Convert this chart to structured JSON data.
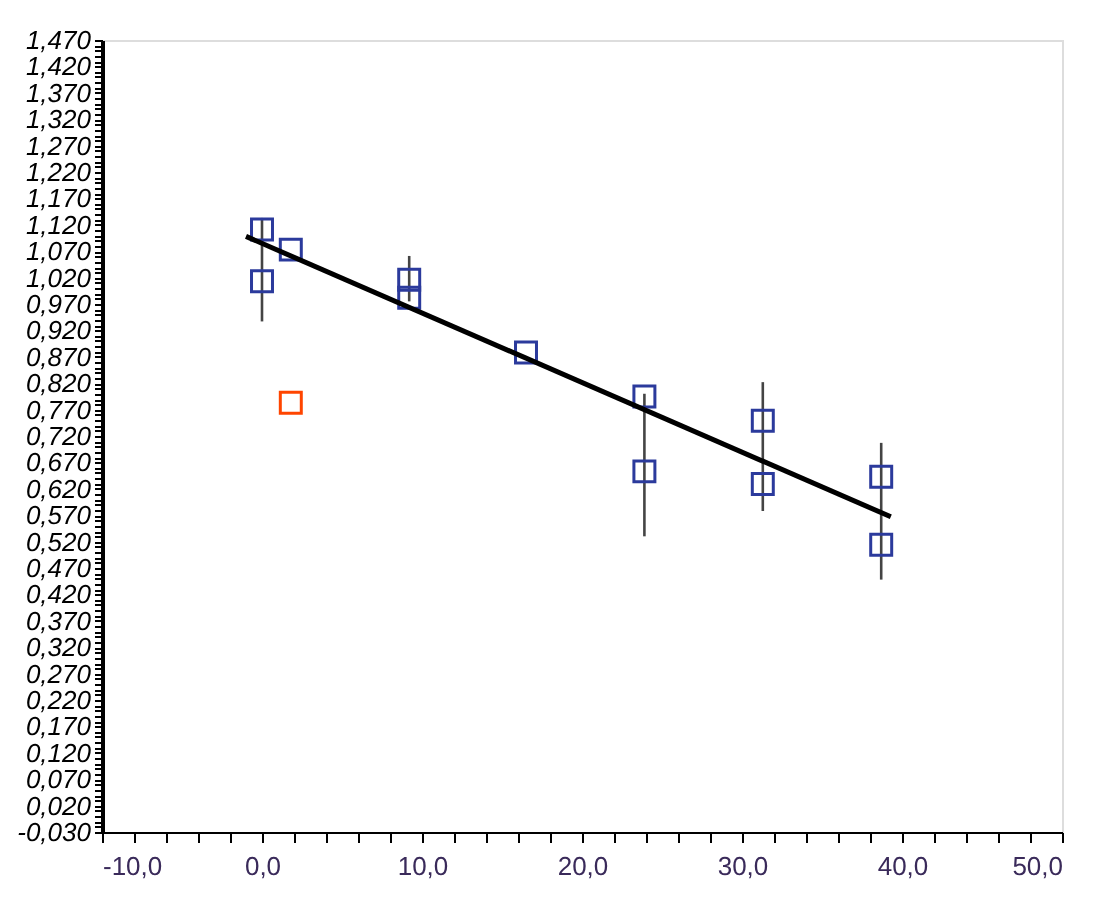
{
  "chart_data": {
    "type": "scatter",
    "marker": "square",
    "grid": false,
    "xlim": [
      -10,
      50
    ],
    "ylim": [
      -0.03,
      1.47
    ],
    "xticks": [
      {
        "value": -10,
        "label": "-10,0"
      },
      {
        "value": -8,
        "label": null
      },
      {
        "value": -6,
        "label": null
      },
      {
        "value": -4,
        "label": null
      },
      {
        "value": -2,
        "label": null
      },
      {
        "value": 0,
        "label": "0,0"
      },
      {
        "value": 2,
        "label": null
      },
      {
        "value": 4,
        "label": null
      },
      {
        "value": 6,
        "label": null
      },
      {
        "value": 8,
        "label": null
      },
      {
        "value": 10,
        "label": "10,0"
      },
      {
        "value": 12,
        "label": null
      },
      {
        "value": 14,
        "label": null
      },
      {
        "value": 16,
        "label": null
      },
      {
        "value": 18,
        "label": null
      },
      {
        "value": 20,
        "label": "20,0"
      },
      {
        "value": 22,
        "label": null
      },
      {
        "value": 24,
        "label": null
      },
      {
        "value": 26,
        "label": null
      },
      {
        "value": 28,
        "label": null
      },
      {
        "value": 30,
        "label": "30,0"
      },
      {
        "value": 32,
        "label": null
      },
      {
        "value": 34,
        "label": null
      },
      {
        "value": 36,
        "label": null
      },
      {
        "value": 38,
        "label": null
      },
      {
        "value": 40,
        "label": "40,0"
      },
      {
        "value": 42,
        "label": null
      },
      {
        "value": 44,
        "label": null
      },
      {
        "value": 46,
        "label": null
      },
      {
        "value": 48,
        "label": null
      },
      {
        "value": 50,
        "label": "50,0"
      }
    ],
    "yticks": [
      {
        "value": -0.03,
        "label": "-0,030"
      },
      {
        "value": -0.02,
        "label": null
      },
      {
        "value": -0.01,
        "label": null
      },
      {
        "value": 0,
        "label": null
      },
      {
        "value": 0.01,
        "label": null
      },
      {
        "value": 0.02,
        "label": "0,020"
      },
      {
        "value": 0.03,
        "label": null
      },
      {
        "value": 0.04,
        "label": null
      },
      {
        "value": 0.05,
        "label": null
      },
      {
        "value": 0.06,
        "label": null
      },
      {
        "value": 0.07,
        "label": "0,070"
      },
      {
        "value": 0.08,
        "label": null
      },
      {
        "value": 0.09,
        "label": null
      },
      {
        "value": 0.1,
        "label": null
      },
      {
        "value": 0.11,
        "label": null
      },
      {
        "value": 0.12,
        "label": "0,120"
      },
      {
        "value": 0.13,
        "label": null
      },
      {
        "value": 0.14,
        "label": null
      },
      {
        "value": 0.15,
        "label": null
      },
      {
        "value": 0.16,
        "label": null
      },
      {
        "value": 0.17,
        "label": "0,170"
      },
      {
        "value": 0.18,
        "label": null
      },
      {
        "value": 0.19,
        "label": null
      },
      {
        "value": 0.2,
        "label": null
      },
      {
        "value": 0.21,
        "label": null
      },
      {
        "value": 0.22,
        "label": "0,220"
      },
      {
        "value": 0.23,
        "label": null
      },
      {
        "value": 0.24,
        "label": null
      },
      {
        "value": 0.25,
        "label": null
      },
      {
        "value": 0.26,
        "label": null
      },
      {
        "value": 0.27,
        "label": "0,270"
      },
      {
        "value": 0.28,
        "label": null
      },
      {
        "value": 0.29,
        "label": null
      },
      {
        "value": 0.3,
        "label": null
      },
      {
        "value": 0.31,
        "label": null
      },
      {
        "value": 0.32,
        "label": "0,320"
      },
      {
        "value": 0.33,
        "label": null
      },
      {
        "value": 0.34,
        "label": null
      },
      {
        "value": 0.35,
        "label": null
      },
      {
        "value": 0.36,
        "label": null
      },
      {
        "value": 0.37,
        "label": "0,370"
      },
      {
        "value": 0.38,
        "label": null
      },
      {
        "value": 0.39,
        "label": null
      },
      {
        "value": 0.4,
        "label": null
      },
      {
        "value": 0.41,
        "label": null
      },
      {
        "value": 0.42,
        "label": "0,420"
      },
      {
        "value": 0.43,
        "label": null
      },
      {
        "value": 0.44,
        "label": null
      },
      {
        "value": 0.45,
        "label": null
      },
      {
        "value": 0.46,
        "label": null
      },
      {
        "value": 0.47,
        "label": "0,470"
      },
      {
        "value": 0.48,
        "label": null
      },
      {
        "value": 0.49,
        "label": null
      },
      {
        "value": 0.5,
        "label": null
      },
      {
        "value": 0.51,
        "label": null
      },
      {
        "value": 0.52,
        "label": "0,520"
      },
      {
        "value": 0.53,
        "label": null
      },
      {
        "value": 0.54,
        "label": null
      },
      {
        "value": 0.55,
        "label": null
      },
      {
        "value": 0.56,
        "label": null
      },
      {
        "value": 0.57,
        "label": "0,570"
      },
      {
        "value": 0.58,
        "label": null
      },
      {
        "value": 0.59,
        "label": null
      },
      {
        "value": 0.6,
        "label": null
      },
      {
        "value": 0.61,
        "label": null
      },
      {
        "value": 0.62,
        "label": "0,620"
      },
      {
        "value": 0.63,
        "label": null
      },
      {
        "value": 0.64,
        "label": null
      },
      {
        "value": 0.65,
        "label": null
      },
      {
        "value": 0.66,
        "label": null
      },
      {
        "value": 0.67,
        "label": "0,670"
      },
      {
        "value": 0.68,
        "label": null
      },
      {
        "value": 0.69,
        "label": null
      },
      {
        "value": 0.7,
        "label": null
      },
      {
        "value": 0.71,
        "label": null
      },
      {
        "value": 0.72,
        "label": "0,720"
      },
      {
        "value": 0.73,
        "label": null
      },
      {
        "value": 0.74,
        "label": null
      },
      {
        "value": 0.75,
        "label": null
      },
      {
        "value": 0.76,
        "label": null
      },
      {
        "value": 0.77,
        "label": "0,770"
      },
      {
        "value": 0.78,
        "label": null
      },
      {
        "value": 0.79,
        "label": null
      },
      {
        "value": 0.8,
        "label": null
      },
      {
        "value": 0.81,
        "label": null
      },
      {
        "value": 0.82,
        "label": "0,820"
      },
      {
        "value": 0.83,
        "label": null
      },
      {
        "value": 0.84,
        "label": null
      },
      {
        "value": 0.85,
        "label": null
      },
      {
        "value": 0.86,
        "label": null
      },
      {
        "value": 0.87,
        "label": "0,870"
      },
      {
        "value": 0.88,
        "label": null
      },
      {
        "value": 0.89,
        "label": null
      },
      {
        "value": 0.9,
        "label": null
      },
      {
        "value": 0.91,
        "label": null
      },
      {
        "value": 0.92,
        "label": "0,920"
      },
      {
        "value": 0.93,
        "label": null
      },
      {
        "value": 0.94,
        "label": null
      },
      {
        "value": 0.95,
        "label": null
      },
      {
        "value": 0.96,
        "label": null
      },
      {
        "value": 0.97,
        "label": "0,970"
      },
      {
        "value": 0.98,
        "label": null
      },
      {
        "value": 0.99,
        "label": null
      },
      {
        "value": 1.0,
        "label": null
      },
      {
        "value": 1.01,
        "label": null
      },
      {
        "value": 1.02,
        "label": "1,020"
      },
      {
        "value": 1.03,
        "label": null
      },
      {
        "value": 1.04,
        "label": null
      },
      {
        "value": 1.05,
        "label": null
      },
      {
        "value": 1.06,
        "label": null
      },
      {
        "value": 1.07,
        "label": "1,070"
      },
      {
        "value": 1.08,
        "label": null
      },
      {
        "value": 1.09,
        "label": null
      },
      {
        "value": 1.1,
        "label": null
      },
      {
        "value": 1.11,
        "label": null
      },
      {
        "value": 1.12,
        "label": "1,120"
      },
      {
        "value": 1.13,
        "label": null
      },
      {
        "value": 1.14,
        "label": null
      },
      {
        "value": 1.15,
        "label": null
      },
      {
        "value": 1.16,
        "label": null
      },
      {
        "value": 1.17,
        "label": "1,170"
      },
      {
        "value": 1.18,
        "label": null
      },
      {
        "value": 1.19,
        "label": null
      },
      {
        "value": 1.2,
        "label": null
      },
      {
        "value": 1.21,
        "label": null
      },
      {
        "value": 1.22,
        "label": "1,220"
      },
      {
        "value": 1.23,
        "label": null
      },
      {
        "value": 1.24,
        "label": null
      },
      {
        "value": 1.25,
        "label": null
      },
      {
        "value": 1.26,
        "label": null
      },
      {
        "value": 1.27,
        "label": "1,270"
      },
      {
        "value": 1.28,
        "label": null
      },
      {
        "value": 1.29,
        "label": null
      },
      {
        "value": 1.3,
        "label": null
      },
      {
        "value": 1.31,
        "label": null
      },
      {
        "value": 1.32,
        "label": "1,320"
      },
      {
        "value": 1.33,
        "label": null
      },
      {
        "value": 1.34,
        "label": null
      },
      {
        "value": 1.35,
        "label": null
      },
      {
        "value": 1.36,
        "label": null
      },
      {
        "value": 1.37,
        "label": "1,370"
      },
      {
        "value": 1.38,
        "label": null
      },
      {
        "value": 1.39,
        "label": null
      },
      {
        "value": 1.4,
        "label": null
      },
      {
        "value": 1.41,
        "label": null
      },
      {
        "value": 1.42,
        "label": "1,420"
      },
      {
        "value": 1.43,
        "label": null
      },
      {
        "value": 1.44,
        "label": null
      },
      {
        "value": 1.45,
        "label": null
      },
      {
        "value": 1.46,
        "label": null
      },
      {
        "value": 1.47,
        "label": "1,470"
      }
    ],
    "series": [
      {
        "color": "#2b3a9c",
        "x": [
          0,
          0,
          1.8,
          9.2,
          9.2,
          16.5,
          23.9,
          23.9,
          31.3,
          31.3,
          38.7,
          38.7
        ],
        "values": [
          1.111,
          1.013,
          1.073,
          1.016,
          0.982,
          0.878,
          0.795,
          0.653,
          0.749,
          0.629,
          0.643,
          0.514
        ],
        "errors": [
          null,
          [
            0.937,
            1.133
          ],
          null,
          [
            0.975,
            1.061
          ],
          null,
          null,
          null,
          [
            0.53,
            0.8
          ],
          null,
          [
            0.578,
            0.822
          ],
          null,
          [
            0.448,
            0.707
          ]
        ]
      },
      {
        "color": "#ff4500",
        "x": [
          1.8
        ],
        "values": [
          0.783
        ]
      },
      {
        "type": "line",
        "marker": "none",
        "color": "#000000",
        "x": [
          -1,
          39.3
        ],
        "values": [
          1.098,
          0.567
        ]
      }
    ]
  }
}
